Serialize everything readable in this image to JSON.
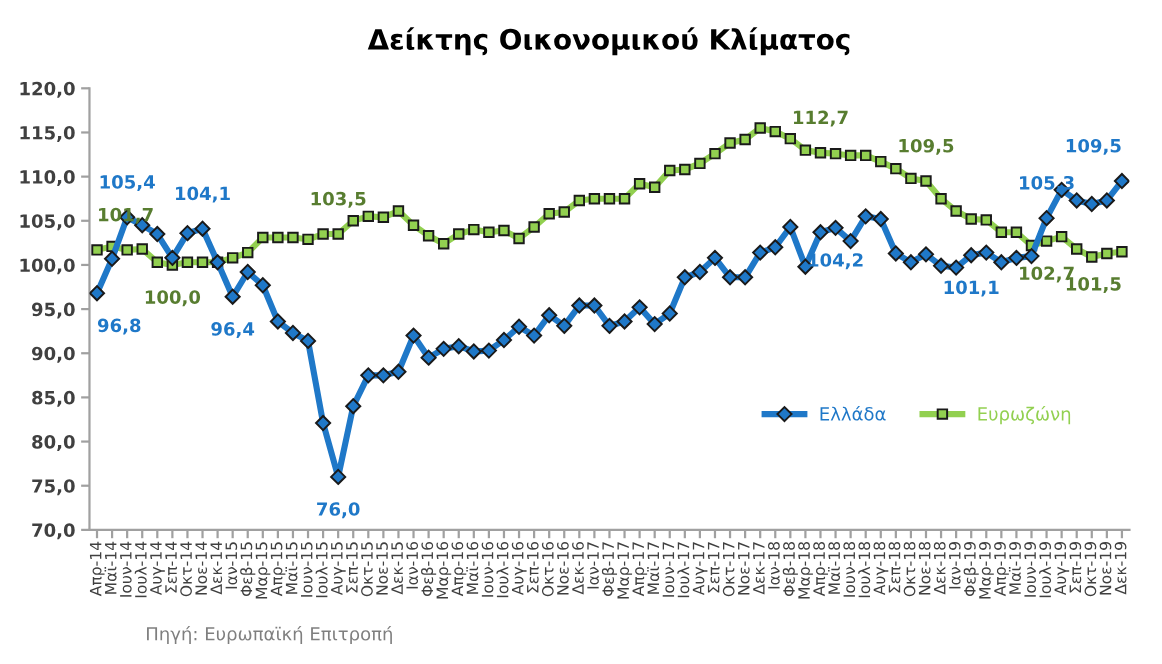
{
  "chart_data": {
    "type": "line",
    "title": "Δείκτης Οικονομικού Κλίματος",
    "categories": [
      "Απρ-14",
      "Μαϊ-14",
      "Ιουν-14",
      "Ιουλ-14",
      "Αυγ-14",
      "Σεπ-14",
      "Οκτ-14",
      "Νοε-14",
      "Δεκ-14",
      "Ιαν-15",
      "Φεβ-15",
      "Μαρ-15",
      "Απρ-15",
      "Μαϊ-15",
      "Ιουν-15",
      "Ιουλ-15",
      "Αυγ-15",
      "Σεπ-15",
      "Οκτ-15",
      "Νοε-15",
      "Δεκ-15",
      "Ιαν-16",
      "Φεβ-16",
      "Μαρ-16",
      "Απρ-16",
      "Μαϊ-16",
      "Ιουν-16",
      "Ιουλ-16",
      "Αυγ-16",
      "Σεπ-16",
      "Οκτ-16",
      "Νοε-16",
      "Δεκ-16",
      "Ιαν-17",
      "Φεβ-17",
      "Μαρ-17",
      "Απρ-17",
      "Μαϊ-17",
      "Ιουν-17",
      "Ιουλ-17",
      "Αυγ-17",
      "Σεπ-17",
      "Οκτ-17",
      "Νοε-17",
      "Δεκ-17",
      "Ιαν-18",
      "Φεβ-18",
      "Μαρ-18",
      "Απρ-18",
      "Μαϊ-18",
      "Ιουν-18",
      "Ιουλ-18",
      "Αυγ-18",
      "Σεπ-18",
      "Οκτ-18",
      "Νοε-18",
      "Δεκ-18",
      "Ιαν-19",
      "Φεβ-19",
      "Μαρ-19",
      "Απρ-19",
      "Μαϊ-19",
      "Ιουν-19",
      "Ιουλ-19",
      "Αυγ-19",
      "Σεπ-19",
      "Οκτ-19",
      "Νοε-19",
      "Δεκ-19"
    ],
    "series": [
      {
        "name": "Ελλάδα",
        "color": "#1f78c8",
        "marker": "diamond",
        "values": [
          96.8,
          100.7,
          105.4,
          104.5,
          103.5,
          100.8,
          103.6,
          104.1,
          100.3,
          96.4,
          99.2,
          97.7,
          93.6,
          92.3,
          91.4,
          82.1,
          76.0,
          84.0,
          87.5,
          87.5,
          87.9,
          92.0,
          89.5,
          90.5,
          90.8,
          90.2,
          90.3,
          91.5,
          93.0,
          92.0,
          94.3,
          93.1,
          95.4,
          95.4,
          93.1,
          93.6,
          95.2,
          93.3,
          94.5,
          98.6,
          99.2,
          100.8,
          98.6,
          98.6,
          101.4,
          102.0,
          104.3,
          99.8,
          103.7,
          104.2,
          102.7,
          105.5,
          105.2,
          101.3,
          100.3,
          101.2,
          99.9,
          99.7,
          101.1,
          101.4,
          100.3,
          100.8,
          101.0,
          105.3,
          108.5,
          107.3,
          106.9,
          107.3,
          109.5
        ],
        "value_labels": [
          "96,8",
          null,
          "105,4",
          null,
          null,
          null,
          null,
          "104,1",
          null,
          "96,4",
          null,
          null,
          null,
          null,
          null,
          null,
          "76,0",
          null,
          null,
          null,
          null,
          null,
          null,
          null,
          null,
          null,
          null,
          null,
          null,
          null,
          null,
          null,
          null,
          null,
          null,
          null,
          null,
          null,
          null,
          null,
          null,
          null,
          null,
          null,
          null,
          null,
          null,
          null,
          null,
          "104,2",
          null,
          null,
          null,
          null,
          null,
          null,
          null,
          null,
          "101,1",
          null,
          null,
          null,
          null,
          "105,3",
          null,
          null,
          null,
          null,
          "109,5"
        ]
      },
      {
        "name": "Ευρωζώνη",
        "color": "#92d050",
        "marker": "square",
        "values": [
          101.7,
          102.1,
          101.7,
          101.8,
          100.3,
          100.0,
          100.3,
          100.3,
          100.3,
          100.8,
          101.4,
          103.1,
          103.1,
          103.1,
          102.9,
          103.5,
          103.5,
          105.0,
          105.5,
          105.4,
          106.1,
          104.5,
          103.3,
          102.4,
          103.5,
          104.0,
          103.7,
          103.9,
          103.0,
          104.3,
          105.8,
          106.0,
          107.3,
          107.5,
          107.5,
          107.5,
          109.2,
          108.8,
          110.7,
          110.8,
          111.5,
          112.6,
          113.8,
          114.2,
          115.5,
          115.1,
          114.3,
          113.0,
          112.7,
          112.6,
          112.4,
          112.4,
          111.7,
          110.9,
          109.8,
          109.5,
          107.5,
          106.1,
          105.2,
          105.1,
          103.7,
          103.7,
          102.2,
          102.7,
          103.2,
          101.8,
          100.9,
          101.3,
          101.5
        ],
        "value_labels": [
          "101,7",
          null,
          null,
          null,
          null,
          "100,0",
          null,
          null,
          null,
          null,
          null,
          null,
          null,
          null,
          null,
          null,
          "103,5",
          null,
          null,
          null,
          null,
          null,
          null,
          null,
          null,
          null,
          null,
          null,
          null,
          null,
          null,
          null,
          null,
          null,
          null,
          null,
          null,
          null,
          null,
          null,
          null,
          null,
          null,
          null,
          null,
          null,
          null,
          null,
          "112,7",
          null,
          null,
          null,
          null,
          null,
          null,
          "109,5",
          null,
          null,
          null,
          null,
          null,
          null,
          null,
          "102,7",
          null,
          null,
          null,
          null,
          "101,5"
        ]
      }
    ],
    "ylim": [
      70,
      120
    ],
    "yticks": [
      {
        "value": 70,
        "label": "70,0"
      },
      {
        "value": 75,
        "label": "75,0"
      },
      {
        "value": 80,
        "label": "80,0"
      },
      {
        "value": 85,
        "label": "85,0"
      },
      {
        "value": 90,
        "label": "90,0"
      },
      {
        "value": 95,
        "label": "95,0"
      },
      {
        "value": 100,
        "label": "100,0"
      },
      {
        "value": 105,
        "label": "105,0"
      },
      {
        "value": 110,
        "label": "110,0"
      },
      {
        "value": 115,
        "label": "115,0"
      },
      {
        "value": 120,
        "label": "120,0"
      }
    ],
    "grid": false,
    "legend": "bottom right",
    "line_style": "solid",
    "annotations": [
      "Πηγή: Ευρωπαϊκή Επιτροπή"
    ]
  }
}
